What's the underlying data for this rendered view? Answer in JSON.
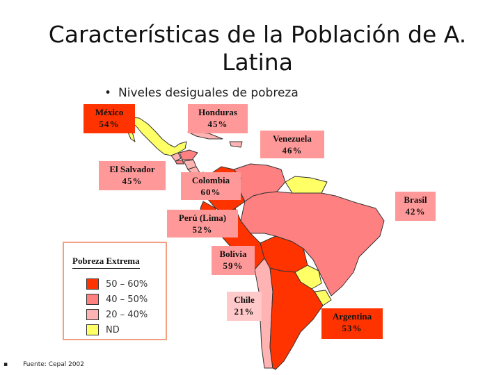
{
  "title": "Características de la Población de A. Latina",
  "subtitle": "Niveles desiguales de pobreza",
  "bullet": "•",
  "colors": {
    "c50_60": "#ff3300",
    "c40_50": "#ff8080",
    "c20_40": "#ffb3b3",
    "nd": "#ffff66",
    "label_bg": "#ff9999",
    "label_bg_light": "#ffc9c9",
    "outline": "#333333"
  },
  "countries": [
    {
      "id": "mexico",
      "name": "México",
      "value": "54%",
      "bg": "#ff3300"
    },
    {
      "id": "honduras",
      "name": "Honduras",
      "value": "45%",
      "bg": "#ff9999"
    },
    {
      "id": "venezuela",
      "name": "Venezuela",
      "value": "46%",
      "bg": "#ff9999"
    },
    {
      "id": "el-salvador",
      "name": "El Salvador",
      "value": "45%",
      "bg": "#ff9999"
    },
    {
      "id": "colombia",
      "name": "Colombia",
      "value": "60%",
      "bg": "#ff3300"
    },
    {
      "id": "brasil",
      "name": "Brasil",
      "value": "42%",
      "bg": "#ff9999"
    },
    {
      "id": "peru",
      "name": "Perú (Lima)",
      "value": "52%",
      "bg": "#ff3300"
    },
    {
      "id": "bolivia",
      "name": "Bolivia",
      "value": "59%",
      "bg": "#ff3300"
    },
    {
      "id": "chile",
      "name": "Chile",
      "value": "21%",
      "bg": "#ffc9c9"
    },
    {
      "id": "argentina",
      "name": "Argentina",
      "value": "53%",
      "bg": "#ff3300"
    }
  ],
  "legend": {
    "title": "Pobreza Extrema",
    "items": [
      {
        "label": "50 – 60%",
        "color": "#ff3300"
      },
      {
        "label": "40 – 50%",
        "color": "#ff8080"
      },
      {
        "label": "20 – 40%",
        "color": "#ffb3b3"
      },
      {
        "label": "ND",
        "color": "#ffff66"
      }
    ]
  },
  "footer": {
    "bullet": "▪",
    "text": "Fuente: Cepal 2002"
  }
}
